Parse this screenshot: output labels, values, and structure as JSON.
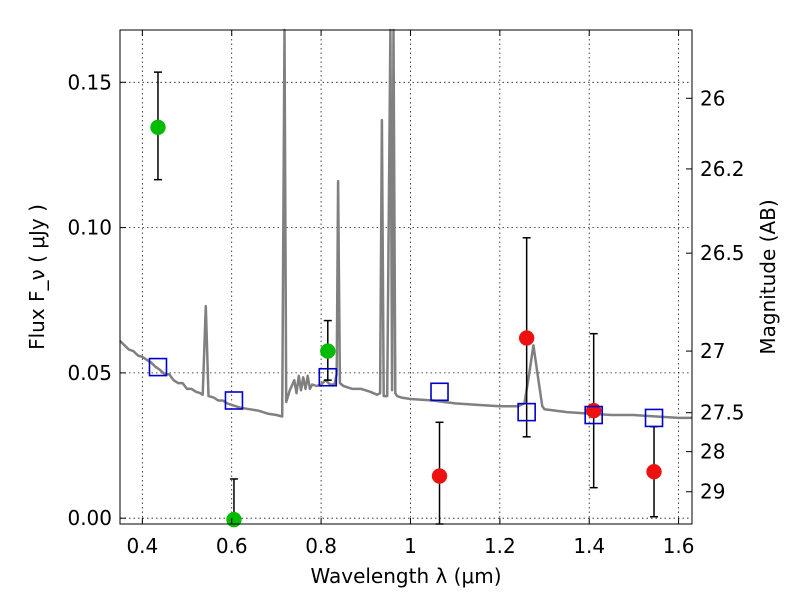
{
  "chart_data": {
    "type": "scatter",
    "xlabel": "Wavelength  λ (μm)",
    "ylabel": "Flux  F_ν  ( μJy )",
    "ylabel_right": "Magnitude (AB)",
    "xlim": [
      0.35,
      1.63
    ],
    "ylim": [
      -0.002,
      0.168
    ],
    "grid": true,
    "x_ticks": [
      {
        "value": 0.4,
        "label": "0.4"
      },
      {
        "value": 0.6,
        "label": "0.6"
      },
      {
        "value": 0.8,
        "label": "0.8"
      },
      {
        "value": 1.0,
        "label": "1"
      },
      {
        "value": 1.2,
        "label": "1.2"
      },
      {
        "value": 1.4,
        "label": "1.4"
      },
      {
        "value": 1.6,
        "label": "1.6"
      }
    ],
    "y_ticks": [
      {
        "value": 0.0,
        "label": "0.00"
      },
      {
        "value": 0.05,
        "label": "0.05"
      },
      {
        "value": 0.1,
        "label": "0.10"
      },
      {
        "value": 0.15,
        "label": "0.15"
      }
    ],
    "right_ticks": [
      {
        "label": "26",
        "flux": 0.1445
      },
      {
        "label": "26.2",
        "flux": 0.1202
      },
      {
        "label": "26.5",
        "flux": 0.0912
      },
      {
        "label": "27",
        "flux": 0.0575
      },
      {
        "label": "27.5",
        "flux": 0.0363
      },
      {
        "label": "28",
        "flux": 0.0229
      },
      {
        "label": "29",
        "flux": 0.0091
      }
    ],
    "series": [
      {
        "marker": "circle-filled",
        "color": "#00bb00",
        "points": [
          {
            "x": 0.435,
            "y": 0.1345,
            "err_lo": 0.1165,
            "err_hi": 0.1535
          },
          {
            "x": 0.605,
            "y": -0.0005,
            "err_lo": -0.002,
            "err_hi": 0.0135
          },
          {
            "x": 0.815,
            "y": 0.0575,
            "err_lo": 0.0475,
            "err_hi": 0.068
          }
        ]
      },
      {
        "marker": "circle-filled",
        "color": "#ee1111",
        "points": [
          {
            "x": 1.065,
            "y": 0.0145,
            "err_lo": -0.002,
            "err_hi": 0.033
          },
          {
            "x": 1.26,
            "y": 0.062,
            "err_lo": 0.028,
            "err_hi": 0.0965
          },
          {
            "x": 1.41,
            "y": 0.037,
            "err_lo": 0.0105,
            "err_hi": 0.0635
          },
          {
            "x": 1.545,
            "y": 0.016,
            "err_lo": 0.0005,
            "err_hi": 0.0315
          }
        ]
      },
      {
        "marker": "square-open",
        "color": "#0000cc",
        "points": [
          {
            "x": 0.435,
            "y": 0.052
          },
          {
            "x": 0.605,
            "y": 0.0405
          },
          {
            "x": 0.815,
            "y": 0.0485
          },
          {
            "x": 1.065,
            "y": 0.0435
          },
          {
            "x": 1.26,
            "y": 0.0365
          },
          {
            "x": 1.41,
            "y": 0.0355
          },
          {
            "x": 1.545,
            "y": 0.0345
          }
        ]
      }
    ],
    "model_spectrum": {
      "color": "#808080",
      "points": [
        [
          0.35,
          0.061
        ],
        [
          0.36,
          0.0595
        ],
        [
          0.37,
          0.058
        ],
        [
          0.38,
          0.0575
        ],
        [
          0.39,
          0.056
        ],
        [
          0.4,
          0.0555
        ],
        [
          0.41,
          0.0545
        ],
        [
          0.42,
          0.0535
        ],
        [
          0.43,
          0.052
        ],
        [
          0.44,
          0.051
        ],
        [
          0.45,
          0.0495
        ],
        [
          0.46,
          0.0495
        ],
        [
          0.47,
          0.0475
        ],
        [
          0.48,
          0.0465
        ],
        [
          0.49,
          0.0465
        ],
        [
          0.5,
          0.0445
        ],
        [
          0.51,
          0.0445
        ],
        [
          0.52,
          0.0435
        ],
        [
          0.53,
          0.043
        ],
        [
          0.535,
          0.0425
        ],
        [
          0.542,
          0.073
        ],
        [
          0.548,
          0.042
        ],
        [
          0.56,
          0.0415
        ],
        [
          0.57,
          0.0405
        ],
        [
          0.58,
          0.0405
        ],
        [
          0.59,
          0.0395
        ],
        [
          0.6,
          0.039
        ],
        [
          0.62,
          0.038
        ],
        [
          0.64,
          0.0375
        ],
        [
          0.66,
          0.037
        ],
        [
          0.68,
          0.036
        ],
        [
          0.7,
          0.0355
        ],
        [
          0.713,
          0.035
        ],
        [
          0.718,
          0.168
        ],
        [
          0.722,
          0.04
        ],
        [
          0.73,
          0.044
        ],
        [
          0.74,
          0.0475
        ],
        [
          0.745,
          0.043
        ],
        [
          0.75,
          0.049
        ],
        [
          0.755,
          0.044
        ],
        [
          0.76,
          0.0485
        ],
        [
          0.765,
          0.0445
        ],
        [
          0.77,
          0.049
        ],
        [
          0.775,
          0.0445
        ],
        [
          0.78,
          0.046
        ],
        [
          0.79,
          0.0455
        ],
        [
          0.8,
          0.046
        ],
        [
          0.81,
          0.0475
        ],
        [
          0.82,
          0.046
        ],
        [
          0.83,
          0.046
        ],
        [
          0.835,
          0.0495
        ],
        [
          0.838,
          0.116
        ],
        [
          0.842,
          0.0465
        ],
        [
          0.85,
          0.0455
        ],
        [
          0.87,
          0.0445
        ],
        [
          0.89,
          0.0445
        ],
        [
          0.91,
          0.0435
        ],
        [
          0.925,
          0.0425
        ],
        [
          0.932,
          0.043
        ],
        [
          0.936,
          0.137
        ],
        [
          0.94,
          0.042
        ],
        [
          0.948,
          0.042
        ],
        [
          0.955,
          0.168
        ],
        [
          0.959,
          0.044
        ],
        [
          0.962,
          0.168
        ],
        [
          0.966,
          0.043
        ],
        [
          0.97,
          0.042
        ],
        [
          0.98,
          0.0415
        ],
        [
          1.0,
          0.041
        ],
        [
          1.05,
          0.0405
        ],
        [
          1.1,
          0.0395
        ],
        [
          1.15,
          0.039
        ],
        [
          1.2,
          0.0385
        ],
        [
          1.24,
          0.0385
        ],
        [
          1.255,
          0.0395
        ],
        [
          1.265,
          0.049
        ],
        [
          1.275,
          0.0595
        ],
        [
          1.285,
          0.049
        ],
        [
          1.295,
          0.0385
        ],
        [
          1.3,
          0.0375
        ],
        [
          1.35,
          0.0365
        ],
        [
          1.4,
          0.036
        ],
        [
          1.45,
          0.0355
        ],
        [
          1.5,
          0.0355
        ],
        [
          1.55,
          0.035
        ],
        [
          1.6,
          0.0345
        ],
        [
          1.63,
          0.0345
        ]
      ]
    }
  }
}
